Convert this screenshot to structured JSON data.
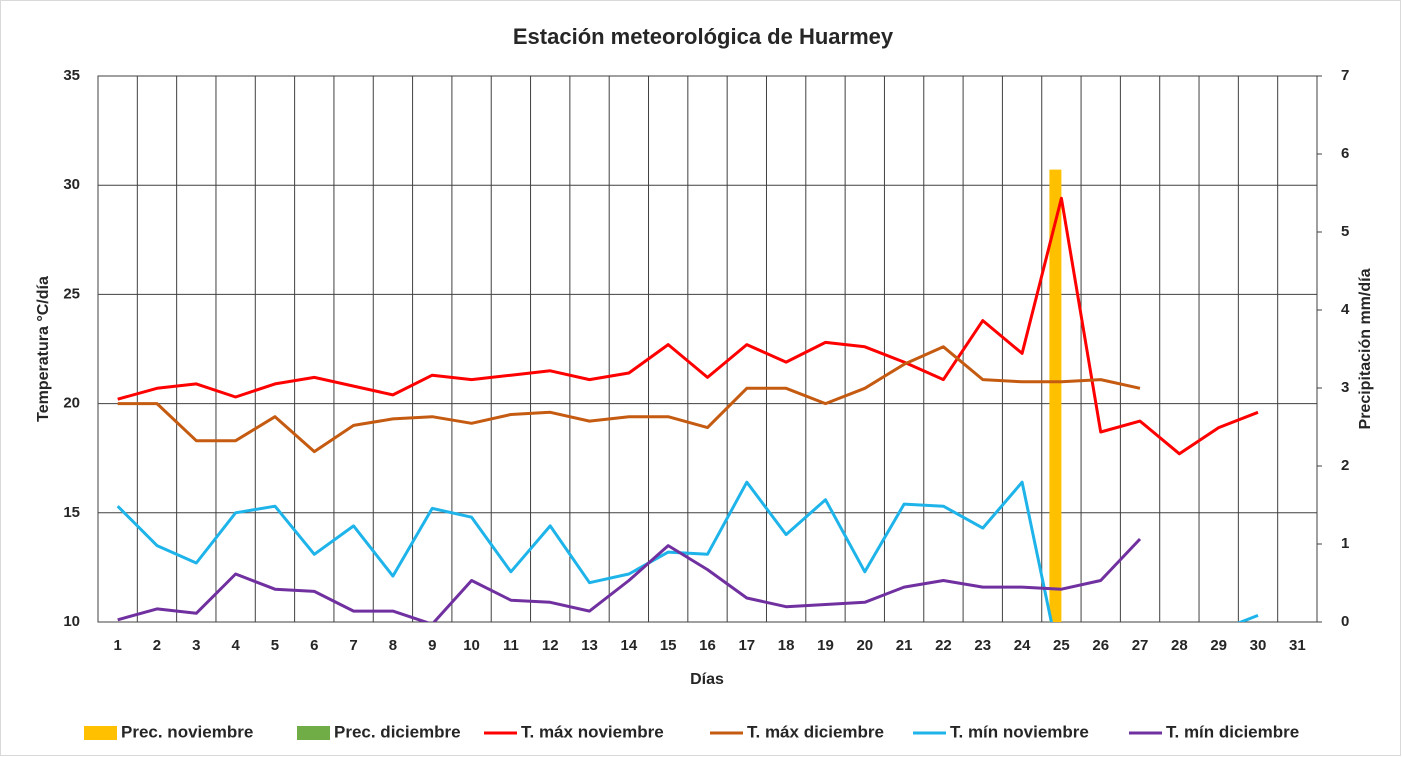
{
  "chart_data": {
    "type": "combo",
    "title": "Estación meteorológica de Huarmey",
    "x_label": "Días",
    "y_label": "Temperatura °C/día",
    "y2_label": "Precipitación mm/día",
    "categories": [
      "1",
      "2",
      "3",
      "4",
      "5",
      "6",
      "7",
      "8",
      "9",
      "10",
      "11",
      "12",
      "13",
      "14",
      "15",
      "16",
      "17",
      "18",
      "19",
      "20",
      "21",
      "22",
      "23",
      "24",
      "25",
      "26",
      "27",
      "28",
      "29",
      "30",
      "31"
    ],
    "ylim": [
      10,
      35
    ],
    "yticks": [
      10,
      15,
      20,
      25,
      30,
      35
    ],
    "y2lim": [
      0,
      7
    ],
    "y2ticks": [
      0,
      1,
      2,
      3,
      4,
      5,
      6,
      7
    ],
    "grid": true,
    "legend": "bottom",
    "series": [
      {
        "name": "Prec. noviembre",
        "type": "bar",
        "axis": "y2",
        "color": "#ffc000",
        "values": [
          null,
          null,
          null,
          null,
          null,
          null,
          null,
          null,
          null,
          null,
          null,
          null,
          null,
          null,
          null,
          null,
          null,
          null,
          null,
          null,
          null,
          null,
          null,
          null,
          5.8,
          null,
          null,
          null,
          null,
          null,
          null
        ]
      },
      {
        "name": "Prec. diciembre",
        "type": "bar",
        "axis": "y2",
        "color": "#70ad47",
        "values": [
          null,
          null,
          null,
          null,
          null,
          null,
          null,
          null,
          null,
          null,
          null,
          null,
          null,
          null,
          null,
          null,
          null,
          null,
          null,
          null,
          null,
          null,
          null,
          null,
          null,
          null,
          null,
          null,
          null,
          null,
          null
        ]
      },
      {
        "name": "T. máx noviembre",
        "type": "line",
        "color": "#ff0000",
        "values": [
          20.2,
          20.7,
          20.9,
          20.3,
          20.9,
          21.2,
          20.8,
          20.4,
          21.3,
          21.1,
          21.3,
          21.5,
          21.1,
          21.4,
          22.7,
          21.2,
          22.7,
          21.9,
          22.8,
          22.6,
          21.9,
          21.1,
          23.8,
          22.3,
          29.4,
          18.7,
          19.2,
          17.7,
          18.9,
          19.6,
          null
        ]
      },
      {
        "name": "T. máx diciembre",
        "type": "line",
        "color": "#c55a11",
        "values": [
          20.0,
          20.0,
          18.3,
          18.3,
          19.4,
          17.8,
          19.0,
          19.3,
          19.4,
          19.1,
          19.5,
          19.6,
          19.2,
          19.4,
          19.4,
          18.9,
          20.7,
          20.7,
          20.0,
          20.7,
          21.8,
          22.6,
          21.1,
          21.0,
          21.0,
          21.1,
          20.7,
          null,
          null,
          null,
          null
        ]
      },
      {
        "name": "T. mín noviembre",
        "type": "line",
        "color": "#1eb4ea",
        "values": [
          15.3,
          13.5,
          12.7,
          15.0,
          15.3,
          13.1,
          14.4,
          12.1,
          15.2,
          14.8,
          12.3,
          14.4,
          11.8,
          12.2,
          13.2,
          13.1,
          16.4,
          14.0,
          15.6,
          12.3,
          15.4,
          15.3,
          14.3,
          16.4,
          7.8,
          null,
          null,
          null,
          9.6,
          10.3,
          null
        ]
      },
      {
        "name": "T. mín diciembre",
        "type": "line",
        "color": "#7030a0",
        "values": [
          10.1,
          10.6,
          10.4,
          12.2,
          11.5,
          11.4,
          10.5,
          10.5,
          9.9,
          11.9,
          11.0,
          10.9,
          10.5,
          11.9,
          13.5,
          12.4,
          11.1,
          10.7,
          10.8,
          10.9,
          11.6,
          11.9,
          11.6,
          11.6,
          11.5,
          11.9,
          13.8,
          null,
          null,
          null,
          null
        ]
      }
    ]
  }
}
